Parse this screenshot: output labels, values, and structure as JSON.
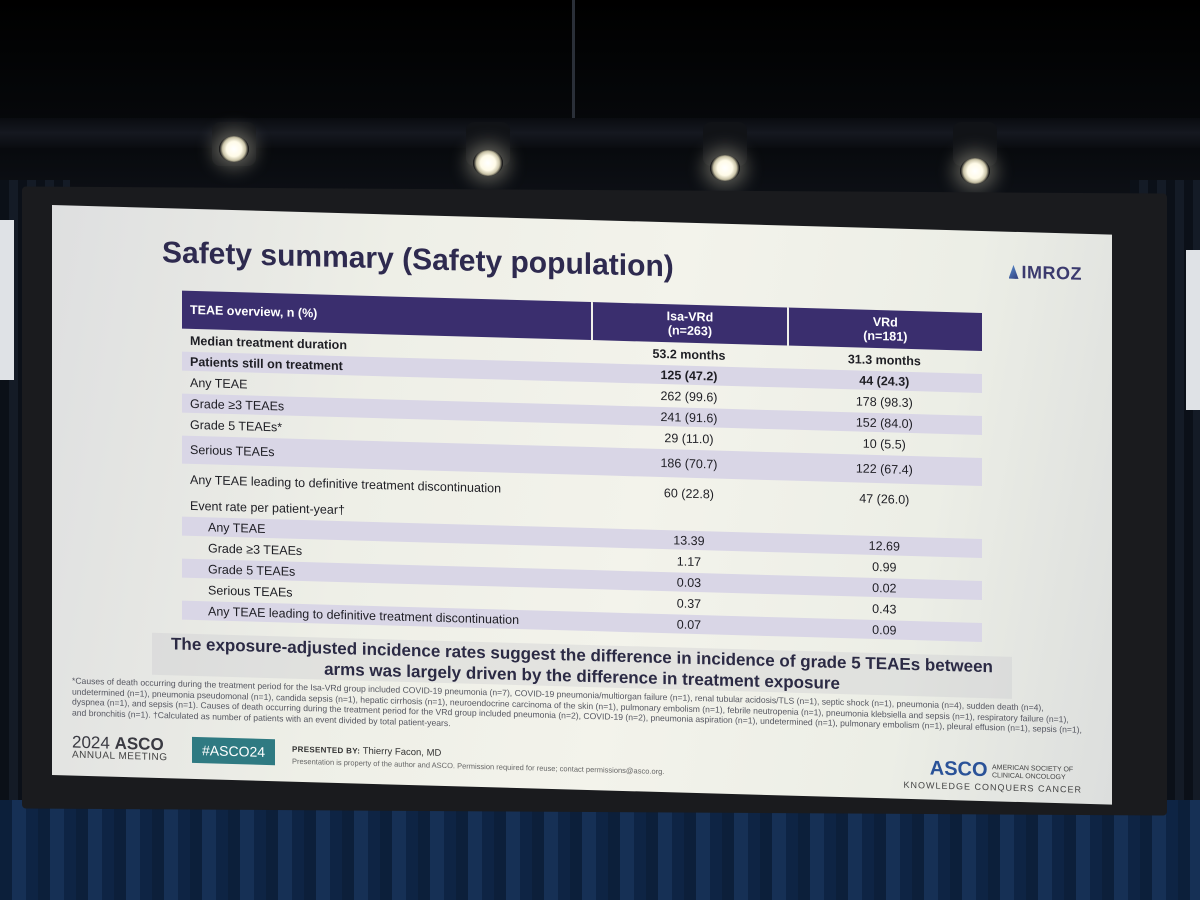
{
  "slide": {
    "title": "Safety summary (Safety population)",
    "logo": "IMROZ",
    "table": {
      "header": {
        "label": "TEAE overview, n (%)",
        "arm1": "Isa-VRd\n(n=263)",
        "arm2": "VRd\n(n=181)"
      },
      "rows": [
        {
          "label": "Median treatment duration",
          "isa_vrd": "53.2 months",
          "vrd": "31.3 months"
        },
        {
          "label": "Patients still on treatment",
          "isa_vrd": "125 (47.2)",
          "vrd": "44 (24.3)"
        },
        {
          "label": "Any TEAE",
          "isa_vrd": "262 (99.6)",
          "vrd": "178 (98.3)"
        },
        {
          "label": "Grade ≥3 TEAEs",
          "isa_vrd": "241 (91.6)",
          "vrd": "152 (84.0)"
        },
        {
          "label": "Grade 5 TEAEs*",
          "isa_vrd": "29 (11.0)",
          "vrd": "10 (5.5)"
        },
        {
          "label": "Serious TEAEs",
          "isa_vrd": "186 (70.7)",
          "vrd": "122 (67.4)"
        },
        {
          "label": "Any TEAE leading to definitive treatment discontinuation",
          "isa_vrd": "60 (22.8)",
          "vrd": "47 (26.0)"
        },
        {
          "label": "Event rate per patient-year†",
          "isa_vrd": "",
          "vrd": ""
        },
        {
          "label": "Any TEAE",
          "isa_vrd": "13.39",
          "vrd": "12.69"
        },
        {
          "label": "Grade ≥3 TEAEs",
          "isa_vrd": "1.17",
          "vrd": "0.99"
        },
        {
          "label": "Grade 5 TEAEs",
          "isa_vrd": "0.03",
          "vrd": "0.02"
        },
        {
          "label": "Serious TEAEs",
          "isa_vrd": "0.37",
          "vrd": "0.43"
        },
        {
          "label": "Any TEAE leading to definitive treatment discontinuation",
          "isa_vrd": "0.07",
          "vrd": "0.09"
        }
      ]
    },
    "takeaway": "The exposure-adjusted incidence rates suggest the difference in incidence of grade 5 TEAEs between arms was largely driven by the difference in treatment exposure",
    "footnote": "*Causes of death occurring during the treatment period for the Isa-VRd group included COVID-19 pneumonia (n=7), COVID-19 pneumonia/multiorgan failure (n=1), renal tubular acidosis/TLS (n=1), septic shock (n=1), pneumonia (n=4), sudden death (n=4), undetermined (n=1), pneumonia pseudomonal (n=1), candida sepsis (n=1), hepatic cirrhosis (n=1), neuroendocrine carcinoma of the skin (n=1), pulmonary embolism (n=1), febrile neutropenia (n=1), pneumonia klebsiella and sepsis (n=1), respiratory failure (n=1), dyspnea (n=1), and sepsis (n=1). Causes of death occurring during the treatment period for the VRd group included pneumonia (n=2), COVID-19 (n=2), pneumonia aspiration (n=1), undetermined (n=1), pulmonary embolism (n=1), pleural effusion (n=1), sepsis (n=1), and bronchitis (n=1). †Calculated as number of patients with an event divided by total patient-years.",
    "footer": {
      "meeting_year": "2024",
      "meeting_name": "ASCO",
      "meeting_sub": "ANNUAL MEETING",
      "hashtag": "#ASCO24",
      "presented_by_label": "PRESENTED BY:",
      "presenter": "Thierry Facon, MD",
      "rights": "Presentation is property of the author and ASCO. Permission required for reuse; contact permissions@asco.org.",
      "asco_word": "ASCO",
      "asco_society": "AMERICAN SOCIETY OF CLINICAL ONCOLOGY",
      "asco_motto": "KNOWLEDGE CONQUERS CANCER"
    }
  }
}
